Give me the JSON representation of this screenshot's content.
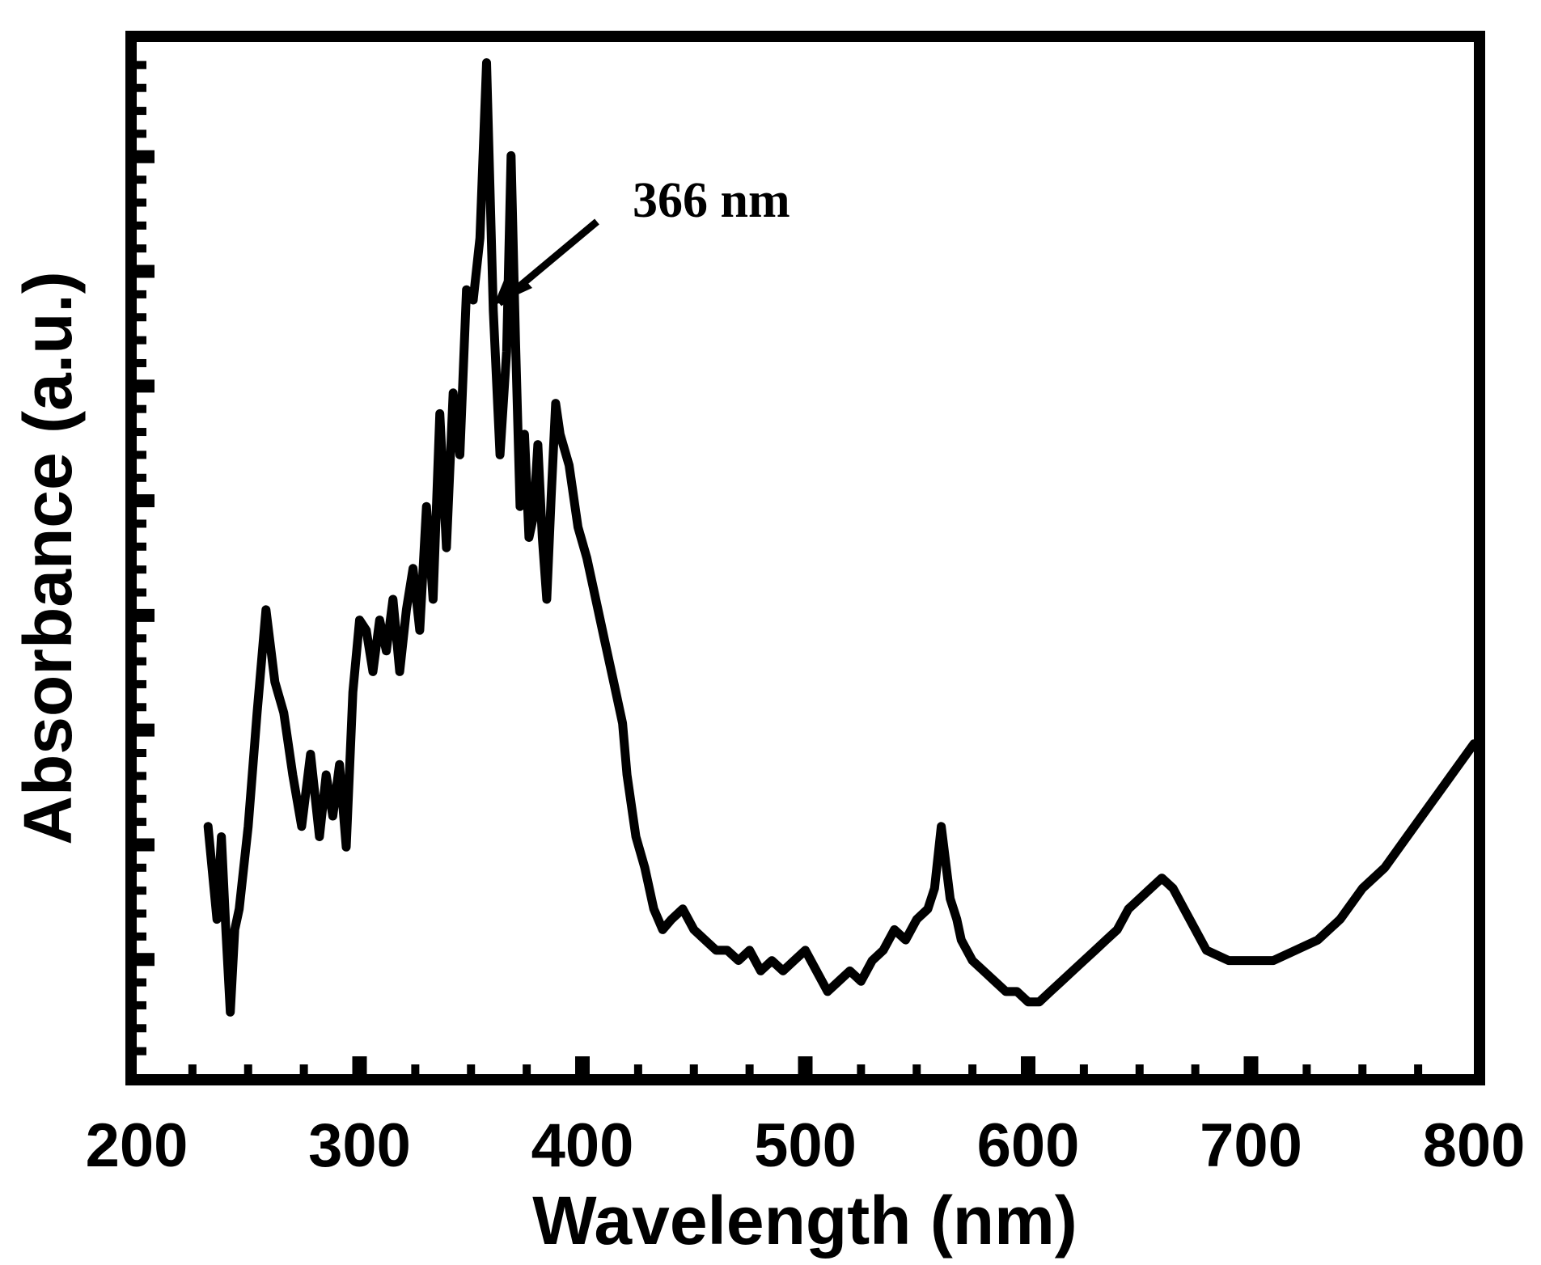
{
  "chart_data": {
    "type": "line",
    "title": "",
    "xlabel": "Wavelength (nm)",
    "ylabel": "Absorbance (a.u.)",
    "xlim": [
      200,
      800
    ],
    "ylim": [
      0,
      10
    ],
    "x_ticks": [
      200,
      300,
      400,
      500,
      600,
      700,
      800
    ],
    "x_tick_labels": [
      "200",
      "300",
      "400",
      "500",
      "600",
      "700",
      "800"
    ],
    "y_tick_labels_shown": false,
    "grid": false,
    "legend": "none",
    "line_color": "#000000",
    "annotation": {
      "text": "366 nm",
      "x": 366,
      "y": 7.4
    },
    "series": [
      {
        "x": [
          232,
          236,
          238,
          240,
          242,
          244,
          246,
          250,
          254,
          258,
          262,
          266,
          270,
          274,
          278,
          282,
          285,
          288,
          291,
          294,
          297,
          300,
          303,
          306,
          309,
          312,
          315,
          318,
          321,
          324,
          327,
          330,
          333,
          336,
          339,
          342,
          345,
          348,
          351,
          354,
          357,
          360,
          363,
          366,
          368,
          370,
          372,
          374,
          376,
          378,
          380,
          382,
          384,
          386,
          388,
          390,
          394,
          398,
          402,
          406,
          410,
          414,
          418,
          420,
          424,
          428,
          432,
          436,
          440,
          445,
          450,
          455,
          460,
          465,
          470,
          475,
          480,
          485,
          490,
          495,
          500,
          505,
          510,
          515,
          520,
          525,
          530,
          535,
          540,
          545,
          550,
          555,
          558,
          561,
          565,
          568,
          570,
          575,
          580,
          585,
          590,
          595,
          600,
          605,
          610,
          615,
          620,
          625,
          630,
          635,
          640,
          645,
          650,
          655,
          660,
          665,
          670,
          680,
          690,
          700,
          710,
          720,
          730,
          740,
          750,
          760,
          770,
          780,
          790,
          800
        ],
        "values": [
          2.4,
          1.5,
          2.3,
          1.4,
          0.6,
          1.4,
          1.6,
          2.4,
          3.5,
          4.5,
          3.8,
          3.5,
          2.9,
          2.4,
          3.1,
          2.3,
          2.9,
          2.5,
          3.0,
          2.2,
          3.7,
          4.4,
          4.3,
          3.9,
          4.4,
          4.1,
          4.6,
          3.9,
          4.5,
          4.9,
          4.3,
          5.5,
          4.6,
          6.4,
          5.1,
          6.6,
          6.0,
          7.6,
          7.5,
          8.1,
          9.8,
          7.4,
          6.0,
          7.0,
          8.9,
          7.1,
          5.5,
          6.2,
          5.2,
          5.4,
          6.1,
          5.2,
          4.6,
          5.6,
          6.5,
          6.2,
          5.9,
          5.3,
          5.0,
          4.6,
          4.2,
          3.8,
          3.4,
          2.9,
          2.3,
          2.0,
          1.6,
          1.4,
          1.5,
          1.6,
          1.4,
          1.3,
          1.2,
          1.2,
          1.1,
          1.2,
          1.0,
          1.1,
          1.0,
          1.1,
          1.2,
          1.0,
          0.8,
          0.9,
          1.0,
          0.9,
          1.1,
          1.2,
          1.4,
          1.3,
          1.5,
          1.6,
          1.8,
          2.4,
          1.7,
          1.5,
          1.3,
          1.1,
          1.0,
          0.9,
          0.8,
          0.8,
          0.7,
          0.7,
          0.8,
          0.9,
          1.0,
          1.1,
          1.2,
          1.3,
          1.4,
          1.6,
          1.7,
          1.8,
          1.9,
          1.8,
          1.6,
          1.2,
          1.1,
          1.1,
          1.1,
          1.2,
          1.3,
          1.5,
          1.8,
          2.0,
          2.3,
          2.6,
          2.9,
          3.2
        ]
      }
    ]
  }
}
